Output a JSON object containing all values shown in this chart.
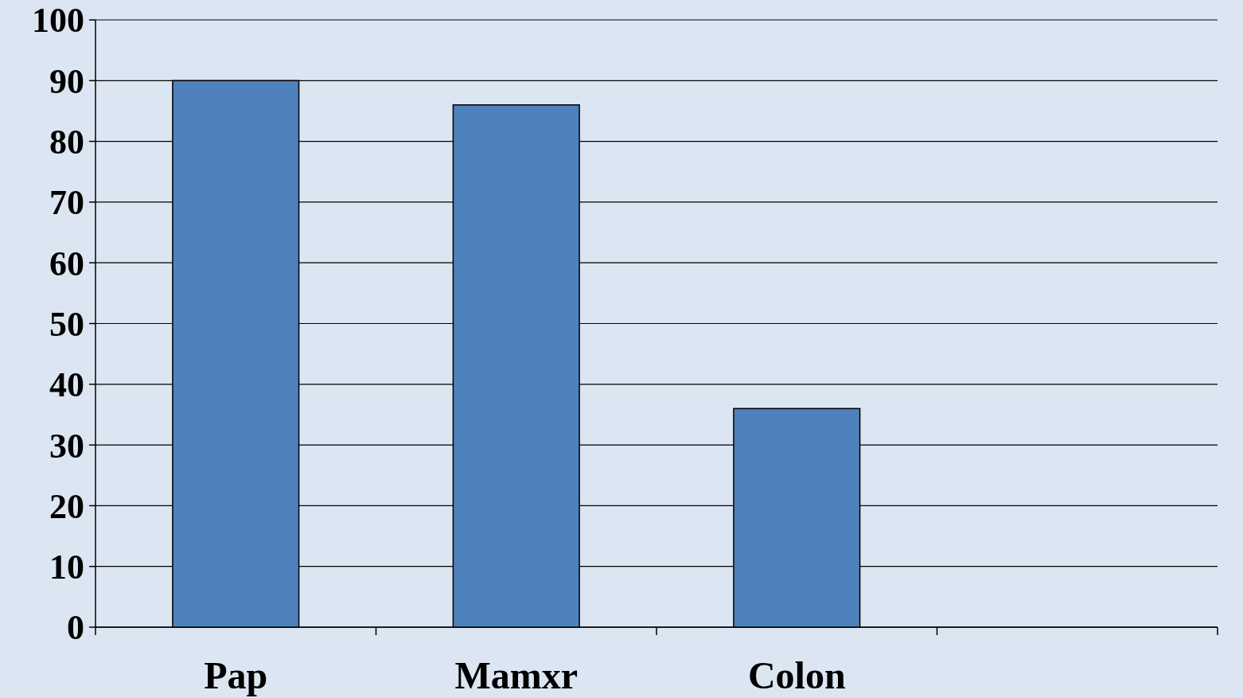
{
  "chart_data": {
    "type": "bar",
    "categories": [
      "Pap",
      "Mamxr",
      "Colon",
      null
    ],
    "values": [
      90,
      86,
      36,
      null
    ],
    "color": "#4f81bd",
    "ylim": [
      0,
      100
    ],
    "yticks": [
      0,
      10,
      20,
      30,
      40,
      50,
      60,
      70,
      80,
      90,
      100
    ],
    "grid": "y"
  }
}
